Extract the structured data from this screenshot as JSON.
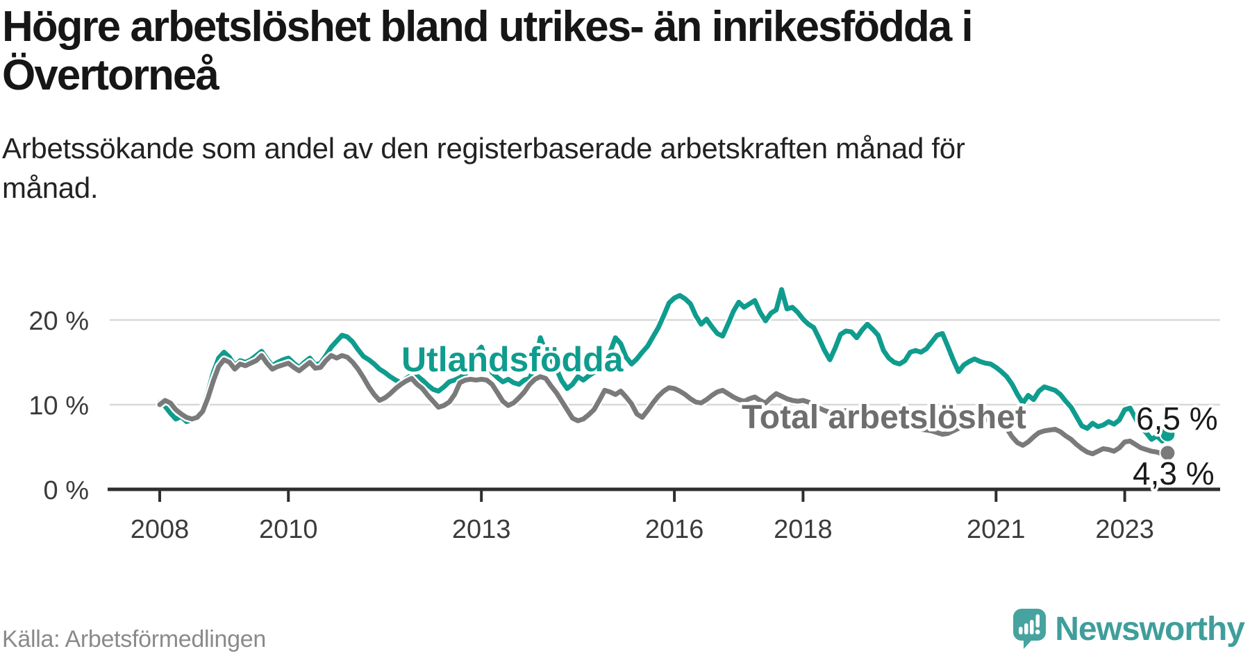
{
  "header": {
    "title_line1": "Högre arbetslöshet bland utrikes- än inrikesfödda i",
    "title_line2": "Övertorneå",
    "subtitle": "Arbetssökande som andel av den registerbaserade arbetskraften månad för månad."
  },
  "chart_data": {
    "type": "line",
    "title": "Högre arbetslöshet bland utrikes- än inrikesfödda i Övertorneå",
    "x_unit": "month",
    "x_start": "2008-01",
    "x_end": "2023-09",
    "ylim": [
      0,
      25
    ],
    "grid": "horizontal",
    "legend_position": "inline-labels",
    "y_ticks": [
      {
        "value": 0,
        "label": "0 %"
      },
      {
        "value": 10,
        "label": "10 %"
      },
      {
        "value": 20,
        "label": "20 %"
      }
    ],
    "x_ticks": [
      {
        "year": 2008,
        "label": "2008"
      },
      {
        "year": 2010,
        "label": "2010"
      },
      {
        "year": 2013,
        "label": "2013"
      },
      {
        "year": 2016,
        "label": "2016"
      },
      {
        "year": 2018,
        "label": "2018"
      },
      {
        "year": 2021,
        "label": "2021"
      },
      {
        "year": 2023,
        "label": "2023"
      }
    ],
    "series": [
      {
        "name": "Utlandsfödda",
        "color": "#0f9c8e",
        "end_value": 6.5,
        "end_label": "6,5 %",
        "values": [
          10.3,
          9.8,
          9.0,
          8.3,
          8.6,
          8.0,
          8.2,
          8.6,
          9.5,
          11.5,
          13.8,
          15.5,
          16.2,
          15.6,
          14.6,
          15.2,
          15.0,
          15.3,
          15.8,
          16.3,
          15.4,
          14.6,
          15.0,
          15.3,
          15.5,
          14.9,
          14.4,
          15.0,
          15.5,
          14.7,
          14.9,
          15.8,
          16.8,
          17.5,
          18.2,
          18.0,
          17.4,
          16.5,
          15.7,
          15.3,
          14.8,
          14.2,
          13.8,
          13.3,
          12.9,
          12.6,
          13.1,
          13.5,
          13.4,
          12.9,
          12.3,
          11.8,
          11.6,
          12.1,
          12.7,
          12.9,
          13.2,
          13.6,
          14.6,
          16.0,
          16.8,
          15.0,
          13.8,
          13.2,
          12.7,
          13.0,
          12.6,
          12.4,
          12.9,
          13.1,
          14.6,
          17.9,
          16.2,
          15.4,
          14.2,
          12.8,
          11.9,
          12.4,
          13.3,
          12.9,
          13.4,
          13.8,
          14.3,
          15.2,
          16.2,
          17.9,
          17.2,
          15.6,
          14.8,
          15.4,
          16.2,
          16.9,
          18.0,
          19.1,
          20.5,
          22.0,
          22.6,
          22.9,
          22.5,
          21.9,
          20.5,
          19.5,
          20.1,
          19.2,
          18.4,
          18.1,
          19.5,
          21.0,
          22.1,
          21.5,
          21.9,
          22.3,
          20.9,
          19.9,
          20.8,
          21.2,
          23.6,
          21.3,
          21.5,
          20.9,
          20.1,
          19.5,
          19.1,
          17.8,
          16.4,
          15.3,
          16.7,
          18.3,
          18.7,
          18.6,
          17.9,
          18.8,
          19.5,
          18.9,
          18.2,
          16.4,
          15.5,
          15.0,
          14.8,
          15.2,
          16.2,
          16.4,
          16.2,
          16.6,
          17.4,
          18.2,
          18.4,
          16.9,
          15.3,
          13.9,
          14.7,
          15.1,
          15.4,
          15.1,
          14.9,
          14.8,
          14.4,
          13.9,
          13.3,
          12.4,
          11.2,
          10.2,
          11.1,
          10.6,
          11.6,
          12.1,
          11.9,
          11.7,
          11.2,
          10.4,
          9.7,
          8.6,
          7.5,
          7.2,
          7.8,
          7.4,
          7.6,
          8.0,
          7.7,
          8.2,
          9.4,
          9.6,
          8.4,
          7.3,
          6.7,
          5.9,
          6.3,
          5.7,
          6.5
        ]
      },
      {
        "name": "Total arbetslöshet",
        "color": "#7a7a7a",
        "end_value": 4.3,
        "end_label": "4,3 %",
        "values": [
          10.0,
          10.5,
          10.2,
          9.4,
          8.9,
          8.5,
          8.3,
          8.5,
          9.2,
          10.8,
          12.8,
          14.5,
          15.3,
          15.0,
          14.2,
          14.8,
          14.6,
          14.9,
          15.2,
          15.8,
          14.9,
          14.2,
          14.5,
          14.7,
          14.9,
          14.4,
          14.0,
          14.5,
          15.0,
          14.3,
          14.4,
          15.2,
          15.8,
          15.5,
          15.8,
          15.6,
          15.0,
          14.2,
          13.2,
          12.1,
          11.2,
          10.5,
          10.8,
          11.3,
          11.9,
          12.4,
          12.8,
          13.1,
          12.4,
          11.9,
          11.1,
          10.4,
          9.7,
          9.9,
          10.3,
          11.2,
          12.6,
          12.9,
          13.0,
          12.9,
          13.0,
          12.9,
          12.4,
          11.4,
          10.4,
          9.9,
          10.2,
          10.8,
          11.5,
          12.4,
          13.0,
          13.3,
          13.1,
          12.2,
          11.4,
          10.4,
          9.4,
          8.4,
          8.1,
          8.3,
          8.8,
          9.4,
          10.5,
          11.7,
          11.5,
          11.2,
          11.6,
          10.9,
          10.1,
          8.9,
          8.5,
          9.3,
          10.2,
          11.0,
          11.6,
          12.0,
          11.9,
          11.6,
          11.2,
          10.7,
          10.3,
          10.2,
          10.6,
          11.1,
          11.5,
          11.7,
          11.3,
          10.9,
          10.6,
          10.4,
          10.7,
          10.9,
          10.5,
          10.2,
          10.8,
          11.3,
          11.0,
          10.7,
          10.5,
          10.4,
          10.5,
          10.3,
          9.9,
          9.6,
          9.3,
          9.1,
          9.0,
          9.1,
          9.3,
          9.2,
          9.0,
          8.9,
          9.0,
          8.8,
          8.6,
          8.4,
          8.2,
          8.0,
          7.8,
          7.6,
          7.4,
          7.3,
          7.1,
          7.0,
          6.9,
          6.7,
          6.5,
          6.6,
          6.9,
          7.2,
          7.4,
          7.7,
          8.0,
          8.1,
          8.2,
          8.3,
          8.2,
          7.9,
          7.2,
          6.2,
          5.5,
          5.2,
          5.6,
          6.2,
          6.7,
          6.9,
          7.0,
          7.1,
          6.8,
          6.3,
          5.9,
          5.3,
          4.8,
          4.4,
          4.2,
          4.5,
          4.8,
          4.7,
          4.5,
          4.9,
          5.6,
          5.7,
          5.3,
          4.9,
          4.7,
          4.5,
          4.4,
          4.2,
          4.3
        ]
      }
    ]
  },
  "footer": {
    "source": "Källa: Arbetsförmedlingen",
    "logo_text": "Newsworthy",
    "logo_color": "#47a39f"
  }
}
